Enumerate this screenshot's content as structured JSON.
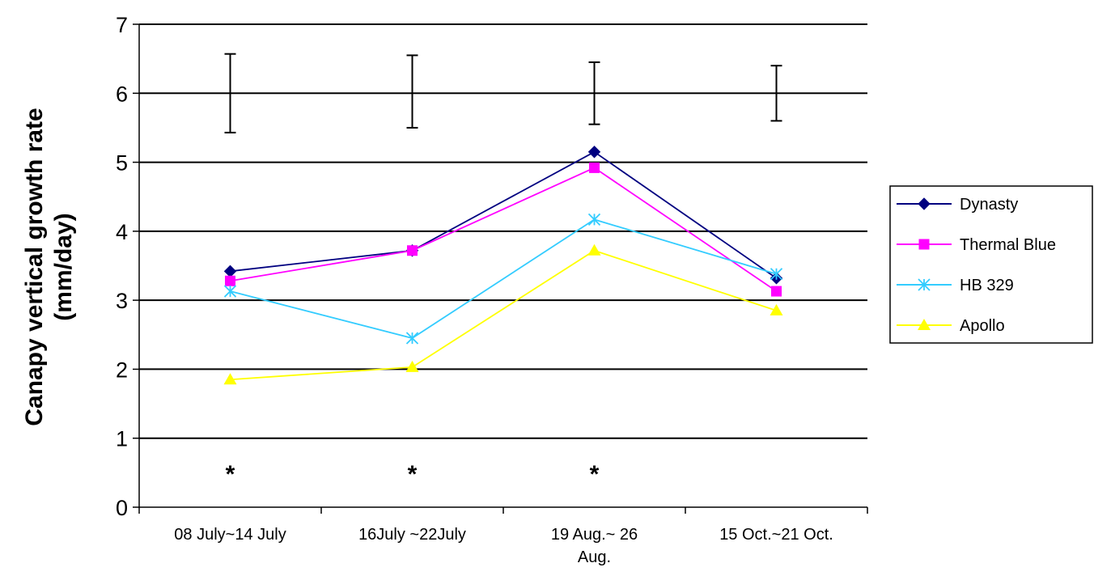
{
  "chart_data": {
    "type": "line",
    "ylabel_lines": [
      "Canapy vertical growth rate",
      "(mm/day)"
    ],
    "ylim": [
      0,
      7
    ],
    "yticks": [
      0,
      1,
      2,
      3,
      4,
      5,
      6,
      7
    ],
    "grid": true,
    "legend_position": "right",
    "categories": [
      [
        "08 July~14 July"
      ],
      [
        "16July ~22July"
      ],
      [
        "19 Aug.~ 26",
        "Aug."
      ],
      [
        "15 Oct.~21 Oct."
      ]
    ],
    "series": [
      {
        "name": "Dynasty",
        "color": "#000080",
        "marker": "diamond",
        "values": [
          3.42,
          3.72,
          5.15,
          3.32
        ]
      },
      {
        "name": "Thermal Blue",
        "color": "#ff00ff",
        "marker": "square",
        "values": [
          3.28,
          3.72,
          4.92,
          3.13
        ]
      },
      {
        "name": "HB 329",
        "color": "#33ccff",
        "marker": "asterisk",
        "values": [
          3.13,
          2.45,
          4.17,
          3.38
        ]
      },
      {
        "name": "Apollo",
        "color": "#ffff00",
        "marker": "triangle",
        "values": [
          1.85,
          2.03,
          3.72,
          2.85
        ]
      }
    ],
    "error_bars": [
      {
        "center": 6.0,
        "low": 5.43,
        "high": 6.57
      },
      {
        "center": 6.0,
        "low": 5.5,
        "high": 6.55
      },
      {
        "center": 6.0,
        "low": 5.55,
        "high": 6.45
      },
      {
        "center": 6.0,
        "low": 5.6,
        "high": 6.4
      }
    ],
    "annotations": [
      {
        "category_index": 0,
        "text": "*",
        "y": 0.55
      },
      {
        "category_index": 1,
        "text": "*",
        "y": 0.55
      },
      {
        "category_index": 2,
        "text": "*",
        "y": 0.55
      }
    ]
  }
}
